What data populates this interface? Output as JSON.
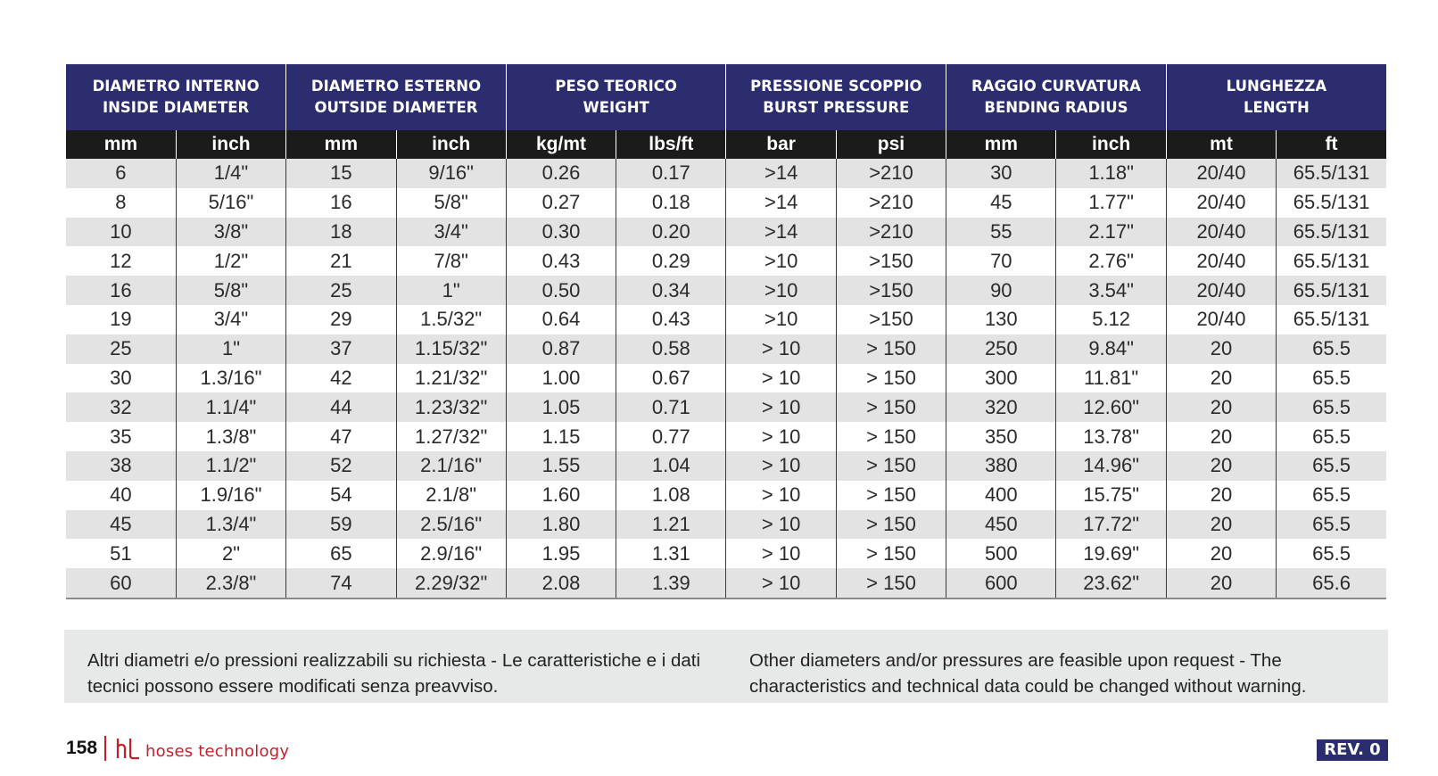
{
  "table": {
    "groups": [
      {
        "line1": "DIAMETRO INTERNO",
        "line2": "INSIDE DIAMETER"
      },
      {
        "line1": "DIAMETRO ESTERNO",
        "line2": "OUTSIDE DIAMETER"
      },
      {
        "line1": "PESO TEORICO",
        "line2": "WEIGHT"
      },
      {
        "line1": "PRESSIONE SCOPPIO",
        "line2": "BURST PRESSURE"
      },
      {
        "line1": "RAGGIO CURVATURA",
        "line2": "BENDING RADIUS"
      },
      {
        "line1": "LUNGHEZZA",
        "line2": "LENGTH"
      }
    ],
    "units": [
      "mm",
      "inch",
      "mm",
      "inch",
      "kg/mt",
      "lbs/ft",
      "bar",
      "psi",
      "mm",
      "inch",
      "mt",
      "ft"
    ],
    "rows": [
      [
        "6",
        "1/4\"",
        "15",
        "9/16\"",
        "0.26",
        "0.17",
        ">14",
        ">210",
        "30",
        "1.18\"",
        "20/40",
        "65.5/131"
      ],
      [
        "8",
        "5/16\"",
        "16",
        "5/8\"",
        "0.27",
        "0.18",
        ">14",
        ">210",
        "45",
        "1.77\"",
        "20/40",
        "65.5/131"
      ],
      [
        "10",
        "3/8\"",
        "18",
        "3/4\"",
        "0.30",
        "0.20",
        ">14",
        ">210",
        "55",
        "2.17\"",
        "20/40",
        "65.5/131"
      ],
      [
        "12",
        "1/2\"",
        "21",
        "7/8\"",
        "0.43",
        "0.29",
        ">10",
        ">150",
        "70",
        "2.76\"",
        "20/40",
        "65.5/131"
      ],
      [
        "16",
        "5/8\"",
        "25",
        "1\"",
        "0.50",
        "0.34",
        ">10",
        ">150",
        "90",
        "3.54\"",
        "20/40",
        "65.5/131"
      ],
      [
        "19",
        "3/4\"",
        "29",
        "1.5/32\"",
        "0.64",
        "0.43",
        ">10",
        ">150",
        "130",
        "5.12",
        "20/40",
        "65.5/131"
      ],
      [
        "25",
        "1\"",
        "37",
        "1.15/32\"",
        "0.87",
        "0.58",
        "> 10",
        "> 150",
        "250",
        "9.84\"",
        "20",
        "65.5"
      ],
      [
        "30",
        "1.3/16\"",
        "42",
        "1.21/32\"",
        "1.00",
        "0.67",
        "> 10",
        "> 150",
        "300",
        "11.81\"",
        "20",
        "65.5"
      ],
      [
        "32",
        "1.1/4\"",
        "44",
        "1.23/32\"",
        "1.05",
        "0.71",
        "> 10",
        "> 150",
        "320",
        "12.60\"",
        "20",
        "65.5"
      ],
      [
        "35",
        "1.3/8\"",
        "47",
        "1.27/32\"",
        "1.15",
        "0.77",
        "> 10",
        "> 150",
        "350",
        "13.78\"",
        "20",
        "65.5"
      ],
      [
        "38",
        "1.1/2\"",
        "52",
        "2.1/16\"",
        "1.55",
        "1.04",
        "> 10",
        "> 150",
        "380",
        "14.96\"",
        "20",
        "65.5"
      ],
      [
        "40",
        "1.9/16\"",
        "54",
        "2.1/8\"",
        "1.60",
        "1.08",
        "> 10",
        "> 150",
        "400",
        "15.75\"",
        "20",
        "65.5"
      ],
      [
        "45",
        "1.3/4\"",
        "59",
        "2.5/16\"",
        "1.80",
        "1.21",
        "> 10",
        "> 150",
        "450",
        "17.72\"",
        "20",
        "65.5"
      ],
      [
        "51",
        "2\"",
        "65",
        "2.9/16\"",
        "1.95",
        "1.31",
        "> 10",
        "> 150",
        "500",
        "19.69\"",
        "20",
        "65.5"
      ],
      [
        "60",
        "2.3/8\"",
        "74",
        "2.29/32\"",
        "2.08",
        "1.39",
        "> 10",
        "> 150",
        "600",
        "23.62\"",
        "20",
        "65.6"
      ]
    ]
  },
  "notes": {
    "italian": "Altri diametri e/o pressioni realizzabili su richiesta - Le caratteristiche e i dati tecnici possono essere modificati senza preavviso.",
    "english": "Other diameters and/or pressures are feasible upon request - The characteristics and technical data could be changed without warning."
  },
  "footer": {
    "page_number": "158",
    "brand": "hoses technology",
    "brand_color": "#c41e2a",
    "revision": "REV. 0"
  },
  "colors": {
    "header_blue": "#2b2d6e",
    "unit_row_black": "#1b1b1b",
    "stripe_gray": "#e3e3e3"
  }
}
